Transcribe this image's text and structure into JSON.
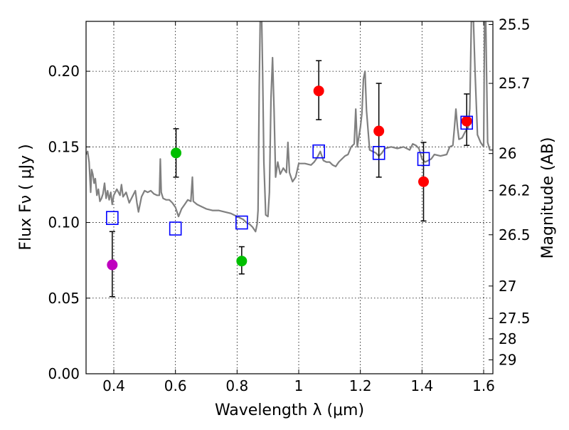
{
  "chart_data": {
    "type": "scatter",
    "xlabel": "Wavelength  λ (μm)",
    "ylabel": "Flux  Fν  ( μJy )",
    "ylabel_right": "Magnitude (AB)",
    "xlim": [
      0.31,
      1.63
    ],
    "ylim": [
      0.0,
      0.233
    ],
    "grid": true,
    "x_ticks": [
      0.4,
      0.6,
      0.8,
      1.0,
      1.2,
      1.4,
      1.6
    ],
    "x_tick_labels": [
      "0.4",
      "0.6",
      "0.8",
      "1",
      "1.2",
      "1.4",
      "1.6"
    ],
    "y_ticks": [
      0.0,
      0.05,
      0.1,
      0.15,
      0.2
    ],
    "y_tick_labels": [
      "0.00",
      "0.05",
      "0.10",
      "0.15",
      "0.20"
    ],
    "right_ticks": [
      {
        "label": "25.5",
        "flux": 0.2309
      },
      {
        "label": "25.7",
        "flux": 0.192
      },
      {
        "label": "26",
        "flux": 0.1456
      },
      {
        "label": "26.2",
        "flux": 0.1211
      },
      {
        "label": "26.5",
        "flux": 0.0919
      },
      {
        "label": "27",
        "flux": 0.058
      },
      {
        "label": "27.5",
        "flux": 0.0366
      },
      {
        "label": "28",
        "flux": 0.0231
      },
      {
        "label": "29",
        "flux": 0.0092
      }
    ],
    "series": [
      {
        "name": "photometry",
        "marker": "circle",
        "points": [
          {
            "x": 0.395,
            "y": 0.072,
            "err_low": 0.051,
            "err_high": 0.094,
            "color": "#bf00bf"
          },
          {
            "x": 0.602,
            "y": 0.146,
            "err_low": 0.13,
            "err_high": 0.162,
            "color": "#00bf00"
          },
          {
            "x": 0.815,
            "y": 0.0745,
            "err_low": 0.066,
            "err_high": 0.084,
            "color": "#00bf00"
          },
          {
            "x": 1.065,
            "y": 0.187,
            "err_low": 0.168,
            "err_high": 0.207,
            "color": "#ff0000"
          },
          {
            "x": 1.26,
            "y": 0.1605,
            "err_low": 0.13,
            "err_high": 0.192,
            "color": "#ff0000"
          },
          {
            "x": 1.405,
            "y": 0.127,
            "err_low": 0.101,
            "err_high": 0.153,
            "color": "#ff0000"
          },
          {
            "x": 1.545,
            "y": 0.167,
            "err_low": 0.151,
            "err_high": 0.185,
            "color": "#ff0000"
          }
        ]
      },
      {
        "name": "model_synthetic_photometry",
        "marker": "open-square",
        "color": "#0000ff",
        "points": [
          {
            "x": 0.395,
            "y": 0.103
          },
          {
            "x": 0.6,
            "y": 0.096
          },
          {
            "x": 0.815,
            "y": 0.1
          },
          {
            "x": 1.065,
            "y": 0.147
          },
          {
            "x": 1.26,
            "y": 0.146
          },
          {
            "x": 1.405,
            "y": 0.142
          },
          {
            "x": 1.545,
            "y": 0.166
          }
        ]
      },
      {
        "name": "model_sed",
        "type": "line",
        "color": "#808080",
        "points": [
          [
            0.31,
            0.145
          ],
          [
            0.315,
            0.147
          ],
          [
            0.32,
            0.14
          ],
          [
            0.325,
            0.12
          ],
          [
            0.328,
            0.135
          ],
          [
            0.332,
            0.132
          ],
          [
            0.336,
            0.126
          ],
          [
            0.34,
            0.129
          ],
          [
            0.345,
            0.118
          ],
          [
            0.35,
            0.122
          ],
          [
            0.355,
            0.114
          ],
          [
            0.36,
            0.116
          ],
          [
            0.365,
            0.119
          ],
          [
            0.37,
            0.126
          ],
          [
            0.375,
            0.116
          ],
          [
            0.38,
            0.121
          ],
          [
            0.385,
            0.115
          ],
          [
            0.39,
            0.12
          ],
          [
            0.395,
            0.112
          ],
          [
            0.4,
            0.118
          ],
          [
            0.41,
            0.122
          ],
          [
            0.42,
            0.118
          ],
          [
            0.425,
            0.125
          ],
          [
            0.43,
            0.117
          ],
          [
            0.44,
            0.12
          ],
          [
            0.45,
            0.113
          ],
          [
            0.46,
            0.117
          ],
          [
            0.47,
            0.121
          ],
          [
            0.475,
            0.113
          ],
          [
            0.48,
            0.107
          ],
          [
            0.49,
            0.117
          ],
          [
            0.5,
            0.121
          ],
          [
            0.51,
            0.12
          ],
          [
            0.52,
            0.121
          ],
          [
            0.53,
            0.119
          ],
          [
            0.54,
            0.118
          ],
          [
            0.548,
            0.118
          ],
          [
            0.551,
            0.142
          ],
          [
            0.554,
            0.12
          ],
          [
            0.56,
            0.116
          ],
          [
            0.57,
            0.115
          ],
          [
            0.58,
            0.115
          ],
          [
            0.59,
            0.113
          ],
          [
            0.6,
            0.11
          ],
          [
            0.61,
            0.104
          ],
          [
            0.62,
            0.109
          ],
          [
            0.63,
            0.112
          ],
          [
            0.64,
            0.115
          ],
          [
            0.65,
            0.114
          ],
          [
            0.655,
            0.13
          ],
          [
            0.658,
            0.114
          ],
          [
            0.67,
            0.112
          ],
          [
            0.68,
            0.111
          ],
          [
            0.7,
            0.109
          ],
          [
            0.72,
            0.108
          ],
          [
            0.74,
            0.108
          ],
          [
            0.76,
            0.107
          ],
          [
            0.78,
            0.106
          ],
          [
            0.8,
            0.104
          ],
          [
            0.82,
            0.102
          ],
          [
            0.83,
            0.1
          ],
          [
            0.84,
            0.099
          ],
          [
            0.85,
            0.097
          ],
          [
            0.86,
            0.094
          ],
          [
            0.865,
            0.099
          ],
          [
            0.868,
            0.108
          ],
          [
            0.872,
            0.19
          ],
          [
            0.875,
            0.233
          ],
          [
            0.88,
            0.233
          ],
          [
            0.883,
            0.198
          ],
          [
            0.887,
            0.14
          ],
          [
            0.893,
            0.105
          ],
          [
            0.9,
            0.104
          ],
          [
            0.905,
            0.12
          ],
          [
            0.91,
            0.182
          ],
          [
            0.915,
            0.209
          ],
          [
            0.92,
            0.175
          ],
          [
            0.925,
            0.13
          ],
          [
            0.932,
            0.14
          ],
          [
            0.94,
            0.132
          ],
          [
            0.95,
            0.136
          ],
          [
            0.96,
            0.133
          ],
          [
            0.965,
            0.153
          ],
          [
            0.97,
            0.133
          ],
          [
            0.98,
            0.127
          ],
          [
            0.99,
            0.13
          ],
          [
            1.0,
            0.139
          ],
          [
            1.02,
            0.139
          ],
          [
            1.04,
            0.138
          ],
          [
            1.05,
            0.14
          ],
          [
            1.06,
            0.143
          ],
          [
            1.07,
            0.147
          ],
          [
            1.08,
            0.141
          ],
          [
            1.09,
            0.14
          ],
          [
            1.1,
            0.14
          ],
          [
            1.11,
            0.138
          ],
          [
            1.12,
            0.137
          ],
          [
            1.13,
            0.14
          ],
          [
            1.15,
            0.144
          ],
          [
            1.16,
            0.145
          ],
          [
            1.17,
            0.15
          ],
          [
            1.18,
            0.152
          ],
          [
            1.185,
            0.175
          ],
          [
            1.19,
            0.15
          ],
          [
            1.2,
            0.163
          ],
          [
            1.205,
            0.172
          ],
          [
            1.21,
            0.195
          ],
          [
            1.215,
            0.2
          ],
          [
            1.22,
            0.174
          ],
          [
            1.23,
            0.148
          ],
          [
            1.24,
            0.147
          ],
          [
            1.25,
            0.146
          ],
          [
            1.26,
            0.144
          ],
          [
            1.27,
            0.146
          ],
          [
            1.28,
            0.149
          ],
          [
            1.3,
            0.15
          ],
          [
            1.32,
            0.149
          ],
          [
            1.34,
            0.15
          ],
          [
            1.36,
            0.148
          ],
          [
            1.37,
            0.152
          ],
          [
            1.38,
            0.151
          ],
          [
            1.39,
            0.149
          ],
          [
            1.4,
            0.142
          ],
          [
            1.41,
            0.14
          ],
          [
            1.42,
            0.141
          ],
          [
            1.43,
            0.142
          ],
          [
            1.44,
            0.145
          ],
          [
            1.46,
            0.144
          ],
          [
            1.48,
            0.145
          ],
          [
            1.49,
            0.15
          ],
          [
            1.5,
            0.151
          ],
          [
            1.505,
            0.162
          ],
          [
            1.51,
            0.175
          ],
          [
            1.515,
            0.163
          ],
          [
            1.52,
            0.155
          ],
          [
            1.53,
            0.156
          ],
          [
            1.54,
            0.16
          ],
          [
            1.55,
            0.163
          ],
          [
            1.555,
            0.175
          ],
          [
            1.56,
            0.233
          ],
          [
            1.567,
            0.233
          ],
          [
            1.572,
            0.2
          ],
          [
            1.58,
            0.158
          ],
          [
            1.59,
            0.153
          ],
          [
            1.6,
            0.15
          ],
          [
            1.603,
            0.233
          ],
          [
            1.607,
            0.233
          ],
          [
            1.613,
            0.153
          ],
          [
            1.62,
            0.148
          ],
          [
            1.63,
            0.148
          ]
        ]
      }
    ]
  }
}
